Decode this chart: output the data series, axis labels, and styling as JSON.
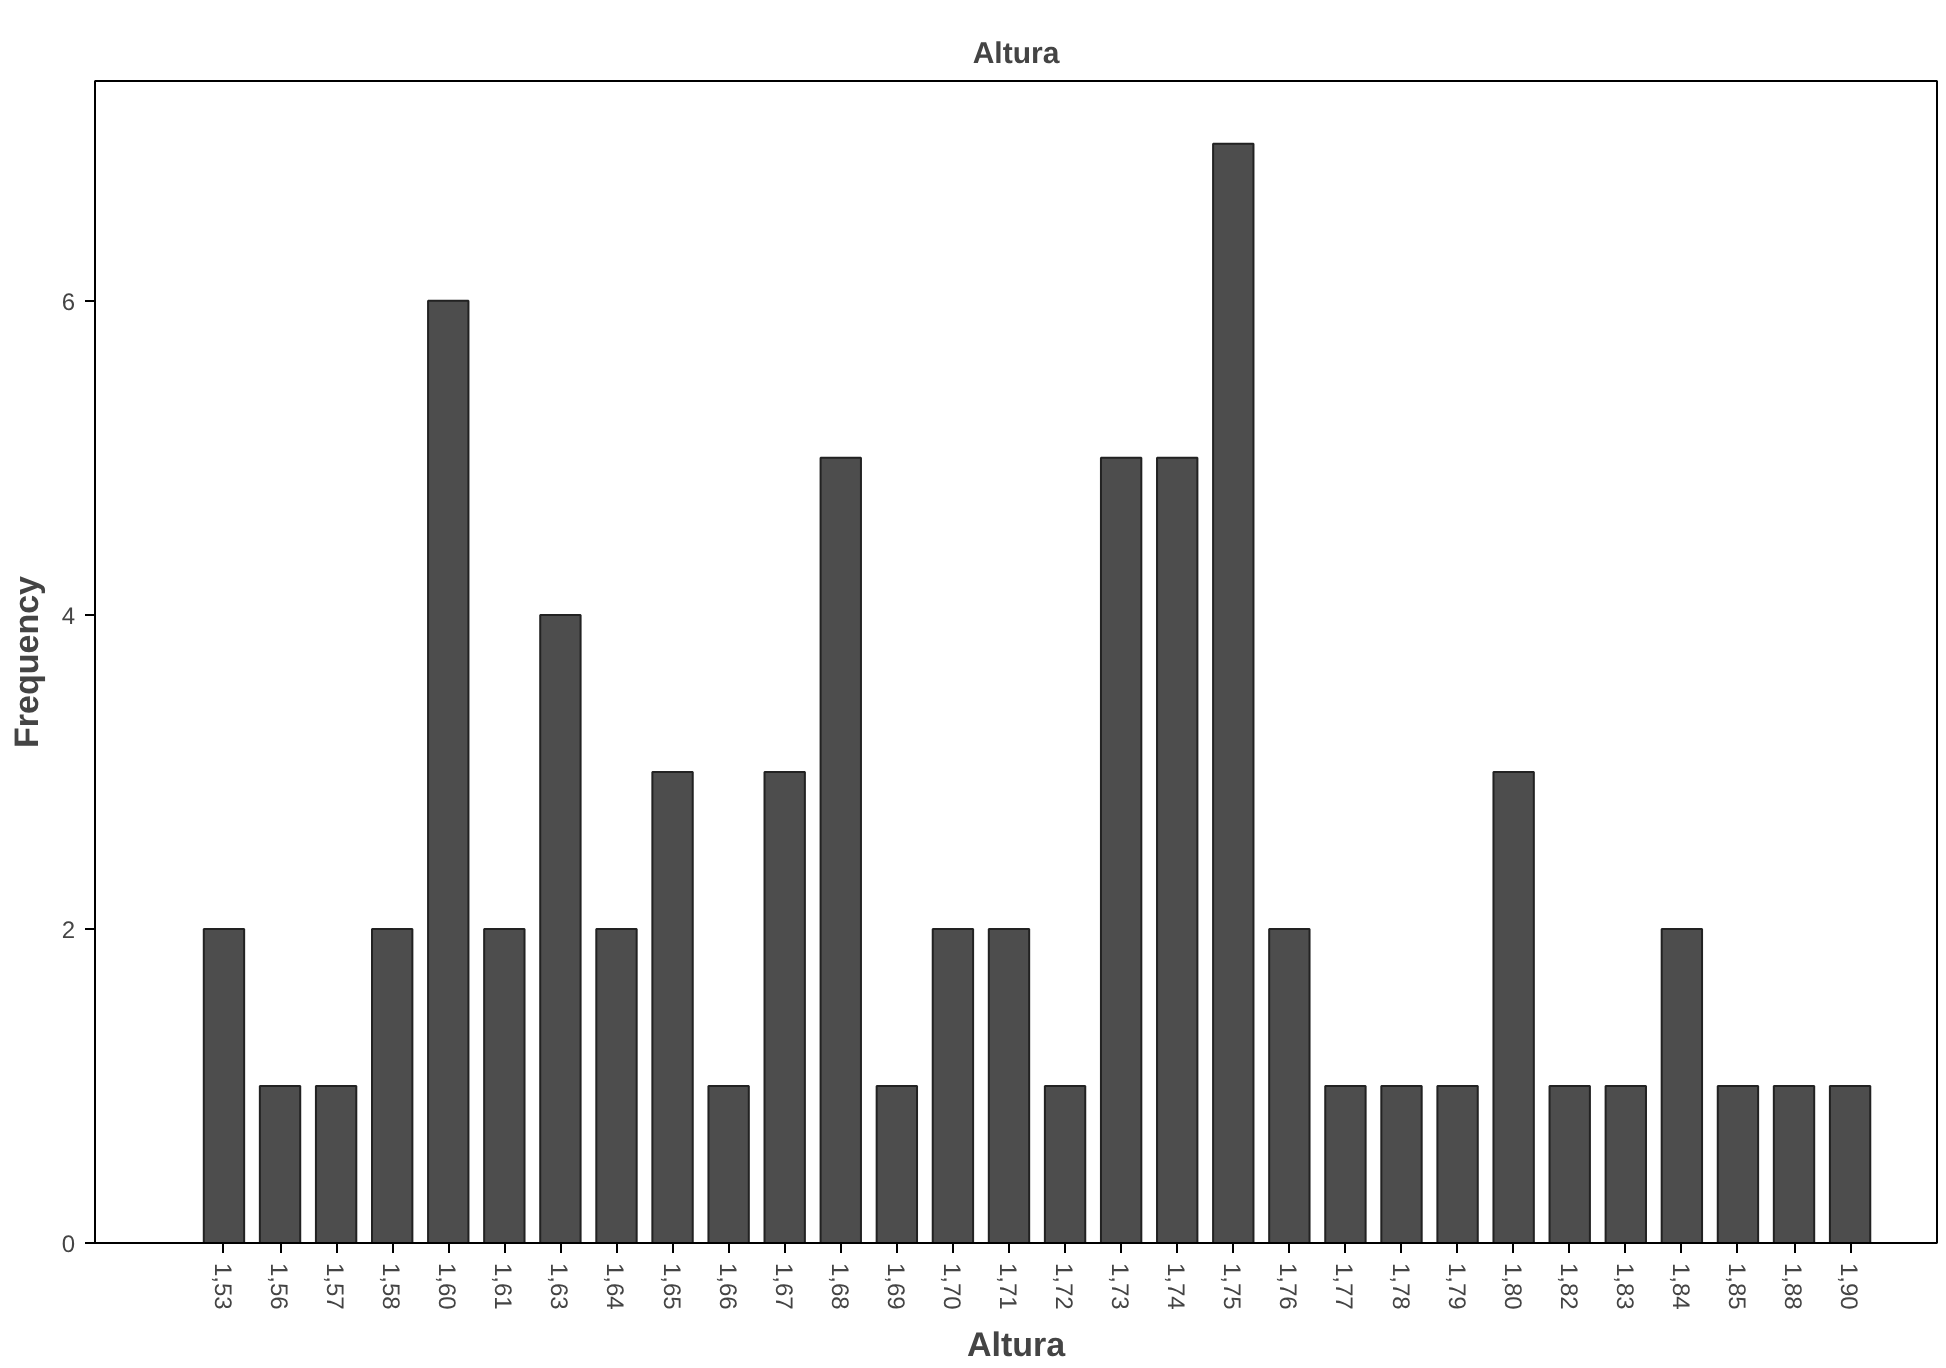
{
  "chart_data": {
    "type": "bar",
    "title": "Altura",
    "xlabel": "Altura",
    "ylabel": "Frequency",
    "categories": [
      "1,53",
      "1,56",
      "1,57",
      "1,58",
      "1,60",
      "1,61",
      "1,63",
      "1,64",
      "1,65",
      "1,66",
      "1,67",
      "1,68",
      "1,69",
      "1,70",
      "1,71",
      "1,72",
      "1,73",
      "1,74",
      "1,75",
      "1,76",
      "1,77",
      "1,78",
      "1,79",
      "1,80",
      "1,82",
      "1,83",
      "1,84",
      "1,85",
      "1,88",
      "1,90"
    ],
    "values": [
      2,
      1,
      1,
      2,
      6,
      2,
      4,
      2,
      3,
      1,
      3,
      5,
      1,
      2,
      2,
      1,
      5,
      5,
      7,
      2,
      1,
      1,
      1,
      3,
      1,
      1,
      2,
      1,
      1,
      1
    ],
    "color": "#4d4d4d",
    "ylim": [
      0,
      7.4
    ],
    "yticks": [
      0,
      2,
      4,
      6
    ],
    "grid": false
  }
}
